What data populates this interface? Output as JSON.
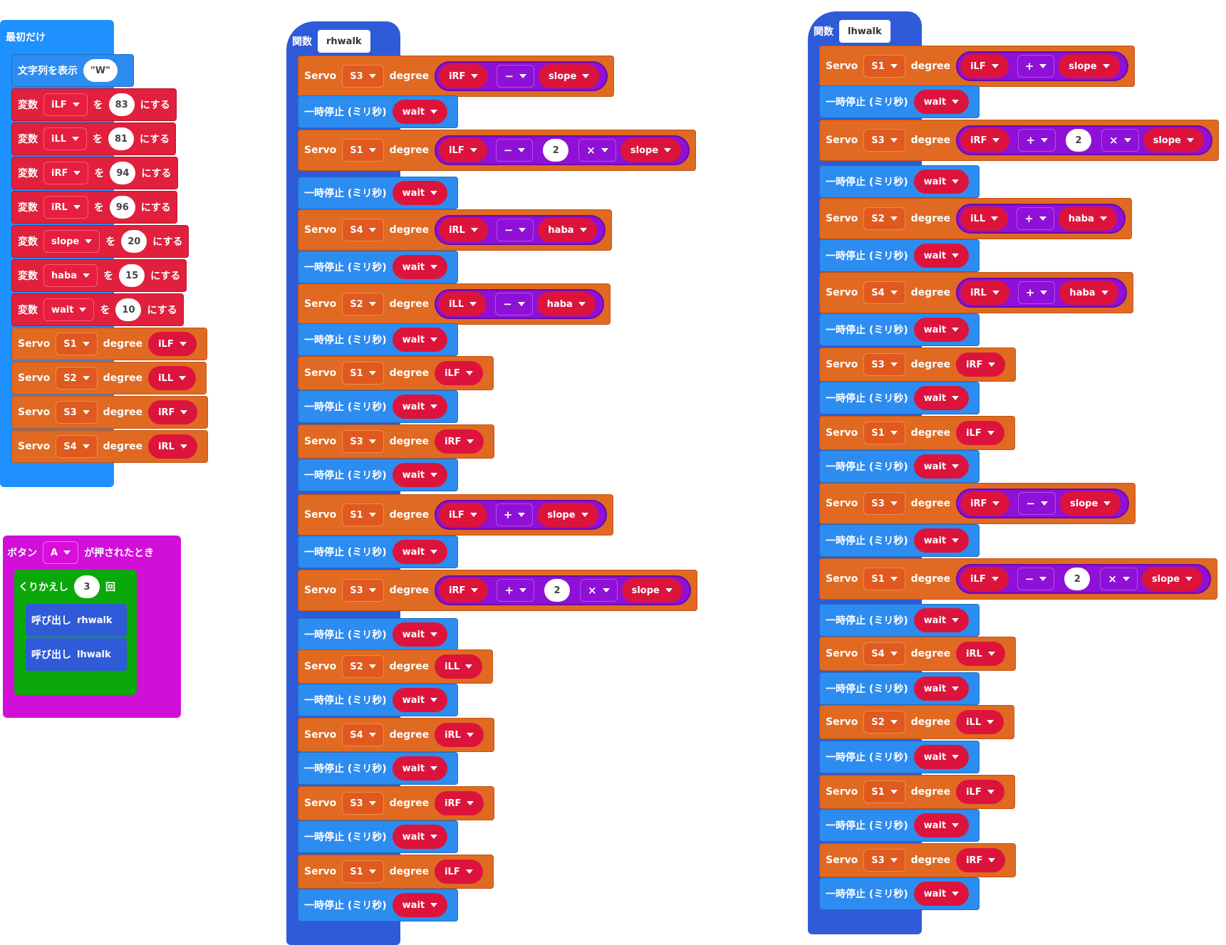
{
  "on_start": {
    "title": "最初だけ",
    "show_string": {
      "label": "文字列を表示",
      "value": "\"W\""
    },
    "set_vars": [
      {
        "label": "変数",
        "name": "iLF",
        "to": "を",
        "value": "83",
        "suffix": "にする"
      },
      {
        "label": "変数",
        "name": "iLL",
        "to": "を",
        "value": "81",
        "suffix": "にする"
      },
      {
        "label": "変数",
        "name": "iRF",
        "to": "を",
        "value": "94",
        "suffix": "にする"
      },
      {
        "label": "変数",
        "name": "iRL",
        "to": "を",
        "value": "96",
        "suffix": "にする"
      },
      {
        "label": "変数",
        "name": "slope",
        "to": "を",
        "value": "20",
        "suffix": "にする"
      },
      {
        "label": "変数",
        "name": "haba",
        "to": "を",
        "value": "15",
        "suffix": "にする"
      },
      {
        "label": "変数",
        "name": "wait",
        "to": "を",
        "value": "10",
        "suffix": "にする"
      }
    ],
    "servos": [
      {
        "label": "Servo",
        "port": "S1",
        "deg": "degree",
        "var": "iLF"
      },
      {
        "label": "Servo",
        "port": "S2",
        "deg": "degree",
        "var": "iLL"
      },
      {
        "label": "Servo",
        "port": "S3",
        "deg": "degree",
        "var": "iRF"
      },
      {
        "label": "Servo",
        "port": "S4",
        "deg": "degree",
        "var": "iRL"
      }
    ]
  },
  "on_button": {
    "label": "ボタン",
    "button": "A",
    "suffix": "が押されたとき",
    "repeat": {
      "label": "くりかえし",
      "count": "3",
      "suffix": "回"
    },
    "calls": [
      {
        "label": "呼び出し",
        "name": "rhwalk"
      },
      {
        "label": "呼び出し",
        "name": "lhwalk"
      }
    ]
  },
  "func_r": {
    "label": "関数",
    "name": "rhwalk",
    "rows": [
      {
        "t": "servo",
        "port": "S3",
        "a": "iRF",
        "op": "−",
        "b": "slope"
      },
      {
        "t": "pause"
      },
      {
        "t": "servo",
        "port": "S1",
        "a": "iLF",
        "op": "−",
        "n": "2",
        "mul": "×",
        "b": "slope"
      },
      {
        "t": "pause"
      },
      {
        "t": "servo",
        "port": "S4",
        "a": "iRL",
        "op": "−",
        "b": "haba"
      },
      {
        "t": "pause"
      },
      {
        "t": "servo",
        "port": "S2",
        "a": "iLL",
        "op": "−",
        "b": "haba"
      },
      {
        "t": "pause"
      },
      {
        "t": "servo",
        "port": "S1",
        "a": "iLF"
      },
      {
        "t": "pause"
      },
      {
        "t": "servo",
        "port": "S3",
        "a": "iRF"
      },
      {
        "t": "pause"
      },
      {
        "t": "servo",
        "port": "S1",
        "a": "iLF",
        "op": "+",
        "b": "slope"
      },
      {
        "t": "pause"
      },
      {
        "t": "servo",
        "port": "S3",
        "a": "iRF",
        "op": "+",
        "n": "2",
        "mul": "×",
        "b": "slope"
      },
      {
        "t": "pause"
      },
      {
        "t": "servo",
        "port": "S2",
        "a": "iLL"
      },
      {
        "t": "pause"
      },
      {
        "t": "servo",
        "port": "S4",
        "a": "iRL"
      },
      {
        "t": "pause"
      },
      {
        "t": "servo",
        "port": "S3",
        "a": "iRF"
      },
      {
        "t": "pause"
      },
      {
        "t": "servo",
        "port": "S1",
        "a": "iLF"
      },
      {
        "t": "pause"
      }
    ]
  },
  "func_l": {
    "label": "関数",
    "name": "lhwalk",
    "rows": [
      {
        "t": "servo",
        "port": "S1",
        "a": "iLF",
        "op": "+",
        "b": "slope"
      },
      {
        "t": "pause"
      },
      {
        "t": "servo",
        "port": "S3",
        "a": "iRF",
        "op": "+",
        "n": "2",
        "mul": "×",
        "b": "slope"
      },
      {
        "t": "pause"
      },
      {
        "t": "servo",
        "port": "S2",
        "a": "iLL",
        "op": "+",
        "b": "haba"
      },
      {
        "t": "pause"
      },
      {
        "t": "servo",
        "port": "S4",
        "a": "iRL",
        "op": "+",
        "b": "haba"
      },
      {
        "t": "pause"
      },
      {
        "t": "servo",
        "port": "S3",
        "a": "iRF"
      },
      {
        "t": "pause"
      },
      {
        "t": "servo",
        "port": "S1",
        "a": "iLF"
      },
      {
        "t": "pause"
      },
      {
        "t": "servo",
        "port": "S3",
        "a": "iRF",
        "op": "−",
        "b": "slope"
      },
      {
        "t": "pause"
      },
      {
        "t": "servo",
        "port": "S1",
        "a": "iLF",
        "op": "−",
        "n": "2",
        "mul": "×",
        "b": "slope"
      },
      {
        "t": "pause"
      },
      {
        "t": "servo",
        "port": "S4",
        "a": "iRL"
      },
      {
        "t": "pause"
      },
      {
        "t": "servo",
        "port": "S2",
        "a": "iLL"
      },
      {
        "t": "pause"
      },
      {
        "t": "servo",
        "port": "S1",
        "a": "iLF"
      },
      {
        "t": "pause"
      },
      {
        "t": "servo",
        "port": "S3",
        "a": "iRF"
      },
      {
        "t": "pause"
      }
    ]
  },
  "labels": {
    "servo": "Servo",
    "degree": "degree",
    "pause": "一時停止 (ミリ秒)",
    "wait": "wait"
  }
}
